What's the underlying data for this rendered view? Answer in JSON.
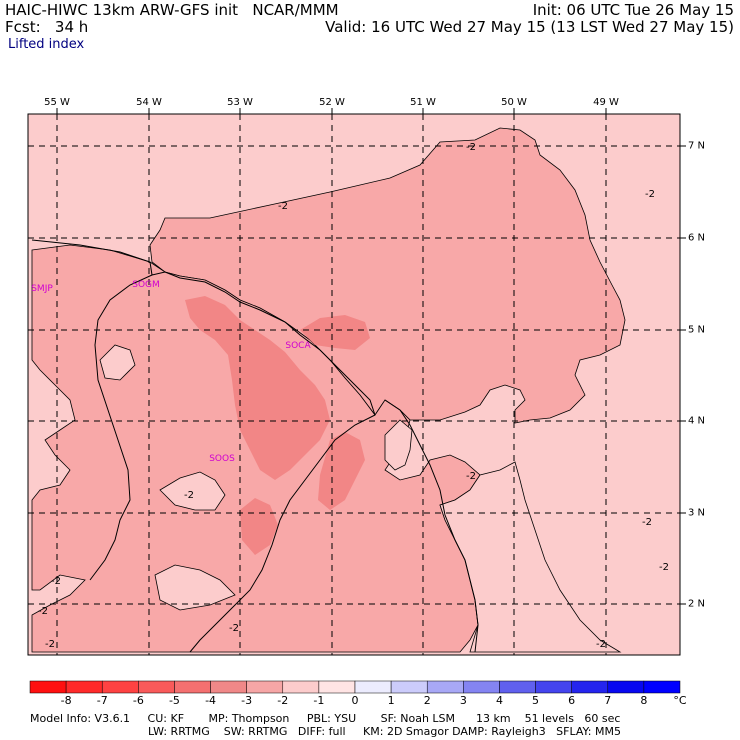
{
  "header": {
    "model_line": "HAIC-HIWC 13km ARW-GFS init   NCAR/MMM",
    "fcst_line": "Fcst:   34 h",
    "init_line": "Init: 06 UTC Tue 26 May 15",
    "valid_line": "Valid: 16 UTC Wed 27 May 15 (13 LST Wed 27 May 15)",
    "field_name": "Lifted index"
  },
  "map": {
    "lon_labels": [
      "55 W",
      "54 W",
      "53 W",
      "52 W",
      "51 W",
      "50 W",
      "49 W"
    ],
    "lat_labels": [
      "7 N",
      "6 N",
      "5 N",
      "4 N",
      "3 N",
      "2 N"
    ],
    "stations": [
      "SMJP",
      "SOGM",
      "SOCA",
      "SOOS"
    ],
    "contour_value_label": "-2",
    "fill_colors": {
      "light": "#fccccc",
      "medium": "#f8a8a8",
      "dark": "#f28686"
    }
  },
  "colorbar": {
    "tick_labels": [
      "-8",
      "-7",
      "-6",
      "-5",
      "-4",
      "-3",
      "-2",
      "-1",
      "0",
      "1",
      "2",
      "3",
      "4",
      "5",
      "6",
      "7",
      "8"
    ],
    "unit": "°C",
    "colors": [
      "#ff1010",
      "#ff2a2a",
      "#fe4242",
      "#f95a5a",
      "#f47070",
      "#f08888",
      "#f6a6a6",
      "#fccccc",
      "#ffe4e4",
      "#ececfe",
      "#ccccfb",
      "#a8a8f6",
      "#8484f2",
      "#6060ee",
      "#4444ee",
      "#2424ee",
      "#0808f0",
      "#0000ff"
    ]
  },
  "footer": {
    "line1": "Model Info: V3.6.1     CU: KF       MP: Thompson     PBL: YSU       SF: Noah LSM      13 km    51 levels   60 sec",
    "line2": "LW: RRTMG    SW: RRTMG   DIFF: full     KM: 2D Smagor DAMP: Rayleigh3   SFLAY: MM5"
  }
}
